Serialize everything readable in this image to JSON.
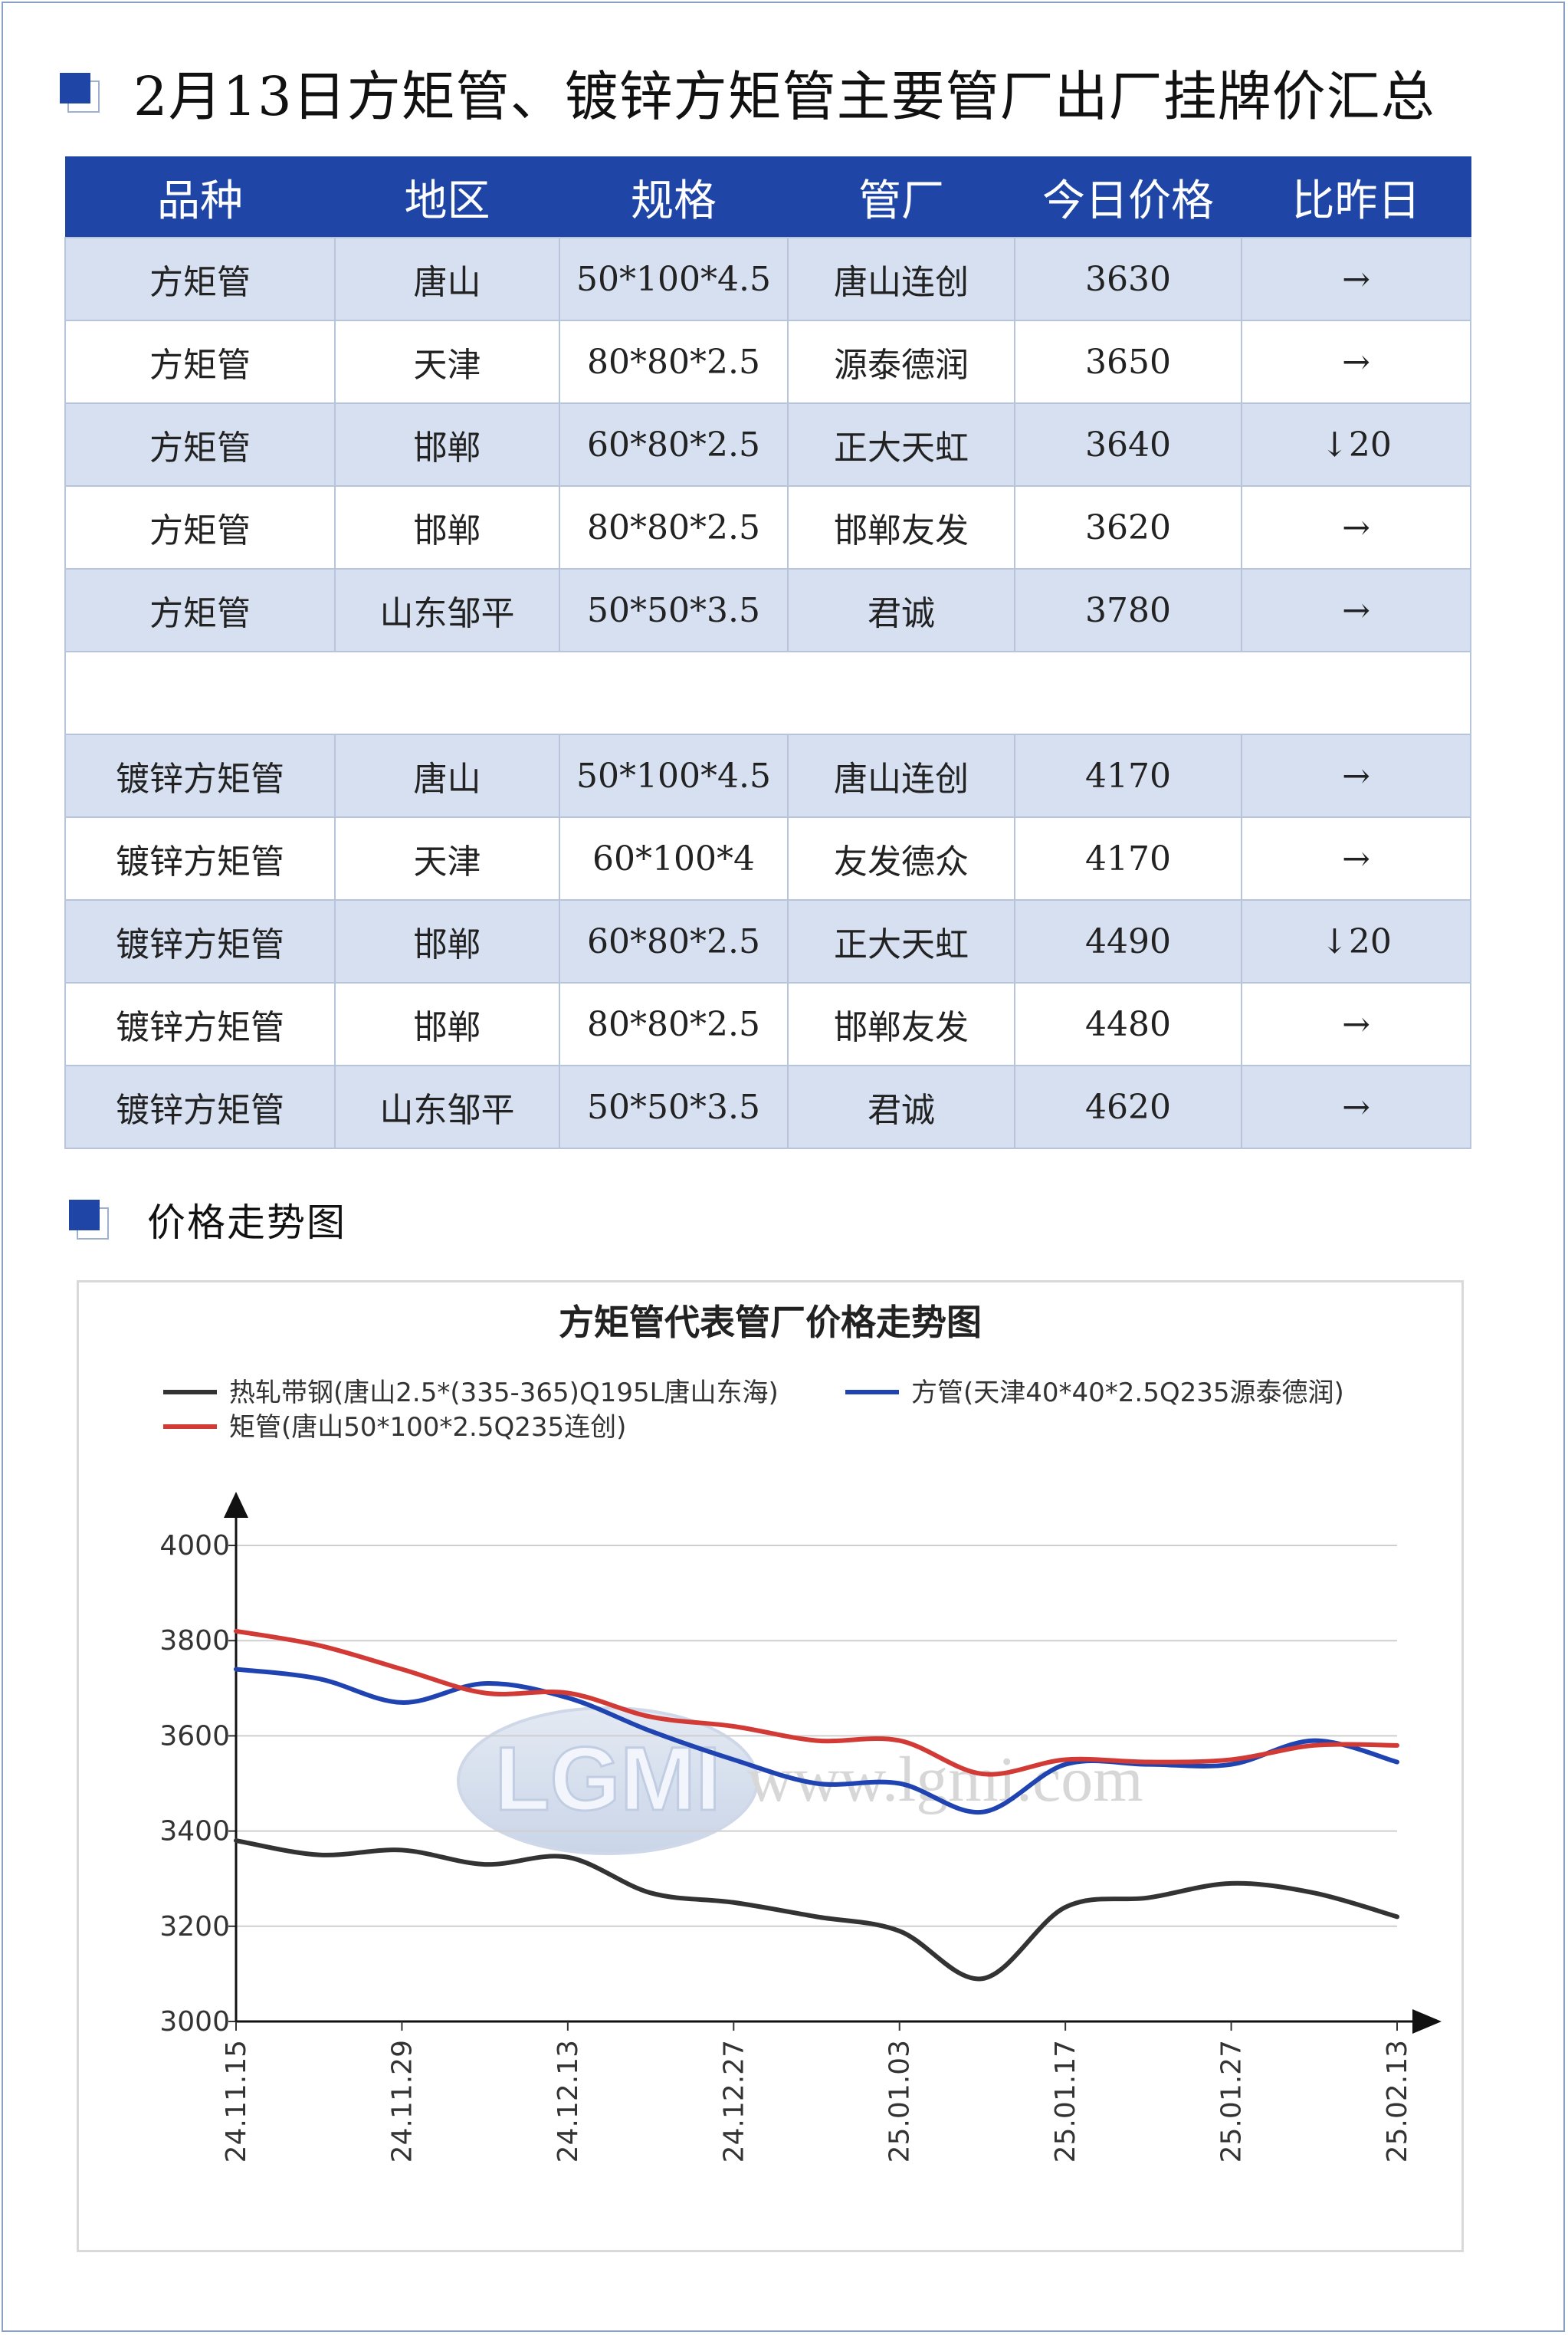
{
  "header": {
    "title": "2月13日方矩管、镀锌方矩管主要管厂出厂挂牌价汇总"
  },
  "table": {
    "columns": [
      "品种",
      "地区",
      "规格",
      "管厂",
      "今日价格",
      "比昨日"
    ],
    "group1": [
      {
        "product": "方矩管",
        "region": "唐山",
        "spec": "50*100*4.5",
        "mill": "唐山连创",
        "price": "3630",
        "change": "→",
        "change_type": "flat"
      },
      {
        "product": "方矩管",
        "region": "天津",
        "spec": "80*80*2.5",
        "mill": "源泰德润",
        "price": "3650",
        "change": "→",
        "change_type": "flat"
      },
      {
        "product": "方矩管",
        "region": "邯郸",
        "spec": "60*80*2.5",
        "mill": "正大天虹",
        "price": "3640",
        "change": "↓20",
        "change_type": "down"
      },
      {
        "product": "方矩管",
        "region": "邯郸",
        "spec": "80*80*2.5",
        "mill": "邯郸友发",
        "price": "3620",
        "change": "→",
        "change_type": "flat"
      },
      {
        "product": "方矩管",
        "region": "山东邹平",
        "spec": "50*50*3.5",
        "mill": "君诚",
        "price": "3780",
        "change": "→",
        "change_type": "flat"
      }
    ],
    "group2": [
      {
        "product": "镀锌方矩管",
        "region": "唐山",
        "spec": "50*100*4.5",
        "mill": "唐山连创",
        "price": "4170",
        "change": "→",
        "change_type": "flat"
      },
      {
        "product": "镀锌方矩管",
        "region": "天津",
        "spec": "60*100*4",
        "mill": "友发德众",
        "price": "4170",
        "change": "→",
        "change_type": "flat"
      },
      {
        "product": "镀锌方矩管",
        "region": "邯郸",
        "spec": "60*80*2.5",
        "mill": "正大天虹",
        "price": "4490",
        "change": "↓20",
        "change_type": "down"
      },
      {
        "product": "镀锌方矩管",
        "region": "邯郸",
        "spec": "80*80*2.5",
        "mill": "邯郸友发",
        "price": "4480",
        "change": "→",
        "change_type": "flat"
      },
      {
        "product": "镀锌方矩管",
        "region": "山东邹平",
        "spec": "50*50*3.5",
        "mill": "君诚",
        "price": "4620",
        "change": "→",
        "change_type": "flat"
      }
    ]
  },
  "section2": {
    "title": "价格走势图"
  },
  "chart_data": {
    "type": "line",
    "title": "方矩管代表管厂价格走势图",
    "legend_position": "top",
    "x_ticks": [
      "24.11.15",
      "24.11.29",
      "24.12.13",
      "24.12.27",
      "25.01.03",
      "25.01.17",
      "25.01.27",
      "25.02.13"
    ],
    "ylim": [
      3000,
      4000
    ],
    "y_ticks": [
      3000,
      3200,
      3400,
      3600,
      3800,
      4000
    ],
    "grid": true,
    "watermark": {
      "logo": "LGMI",
      "url": "www.lgmi.com"
    },
    "series": [
      {
        "name": "热轧带钢(唐山2.5*(335-365)Q195L唐山东海)",
        "color": "#333333",
        "values": [
          3380,
          3350,
          3360,
          3330,
          3345,
          3270,
          3250,
          3220,
          3190,
          3090,
          3240,
          3260,
          3290,
          3270,
          3220
        ]
      },
      {
        "name": "方管(天津40*40*2.5Q235源泰德润)",
        "color": "#1f43b0",
        "values": [
          3740,
          3720,
          3670,
          3710,
          3680,
          3610,
          3550,
          3500,
          3500,
          3440,
          3540,
          3540,
          3540,
          3590,
          3545
        ]
      },
      {
        "name": "矩管(唐山50*100*2.5Q235连创)",
        "color": "#d23a36",
        "values": [
          3820,
          3790,
          3740,
          3690,
          3690,
          3640,
          3620,
          3590,
          3590,
          3520,
          3550,
          3545,
          3550,
          3580,
          3580
        ]
      }
    ]
  }
}
